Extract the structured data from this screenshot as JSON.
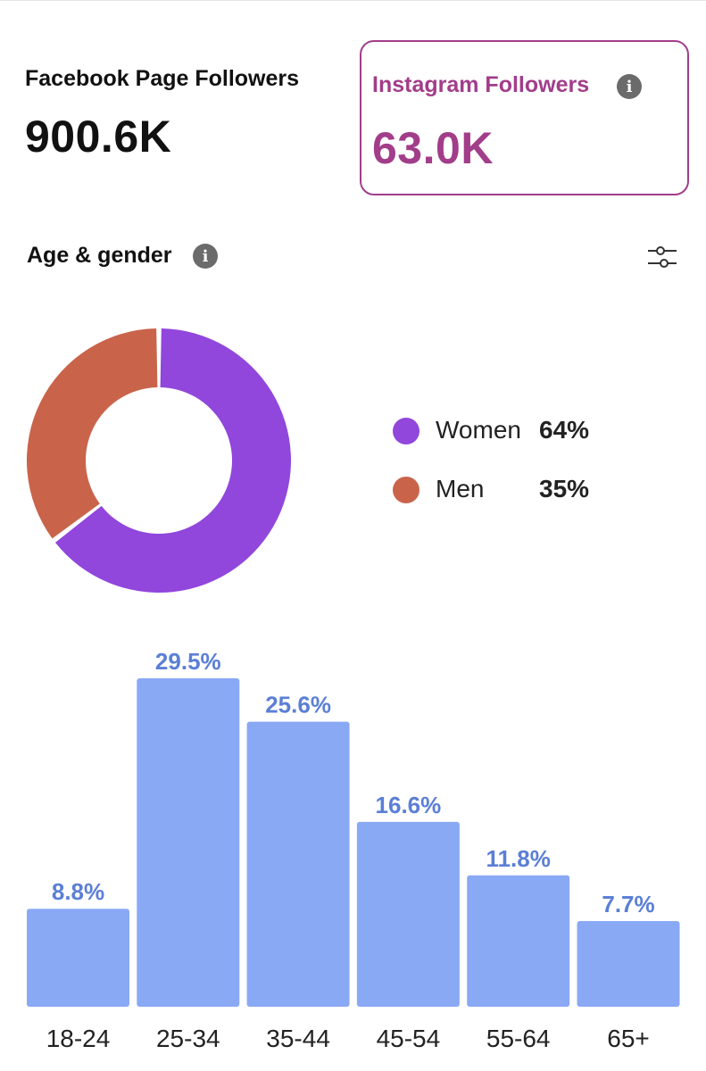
{
  "facebook": {
    "title": "Facebook Page Followers",
    "value": "900.6K"
  },
  "instagram": {
    "title": "Instagram Followers",
    "value": "63.0K",
    "accent_color": "#a23d8a",
    "info_icon": "info-icon"
  },
  "age_gender": {
    "title": "Age & gender",
    "info_icon": "info-icon",
    "filter_icon": "sliders-icon"
  },
  "legend": [
    {
      "label": "Women",
      "pct": "64%",
      "color": "#9146dc"
    },
    {
      "label": "Men",
      "pct": "35%",
      "color": "#c9644b"
    }
  ],
  "chart_data": [
    {
      "type": "pie",
      "categories": [
        "Women",
        "Men"
      ],
      "values": [
        64,
        35
      ],
      "colors": [
        "#9146dc",
        "#c9644b"
      ],
      "donut": true
    },
    {
      "type": "bar",
      "categories": [
        "18-24",
        "25-34",
        "35-44",
        "45-54",
        "55-64",
        "65+"
      ],
      "values": [
        8.8,
        29.5,
        25.6,
        16.6,
        11.8,
        7.7
      ],
      "labels": [
        "8.8%",
        "29.5%",
        "25.6%",
        "16.6%",
        "11.8%",
        "7.7%"
      ],
      "bar_color": "#8aa9f5",
      "label_color": "#5b7fd6"
    }
  ]
}
